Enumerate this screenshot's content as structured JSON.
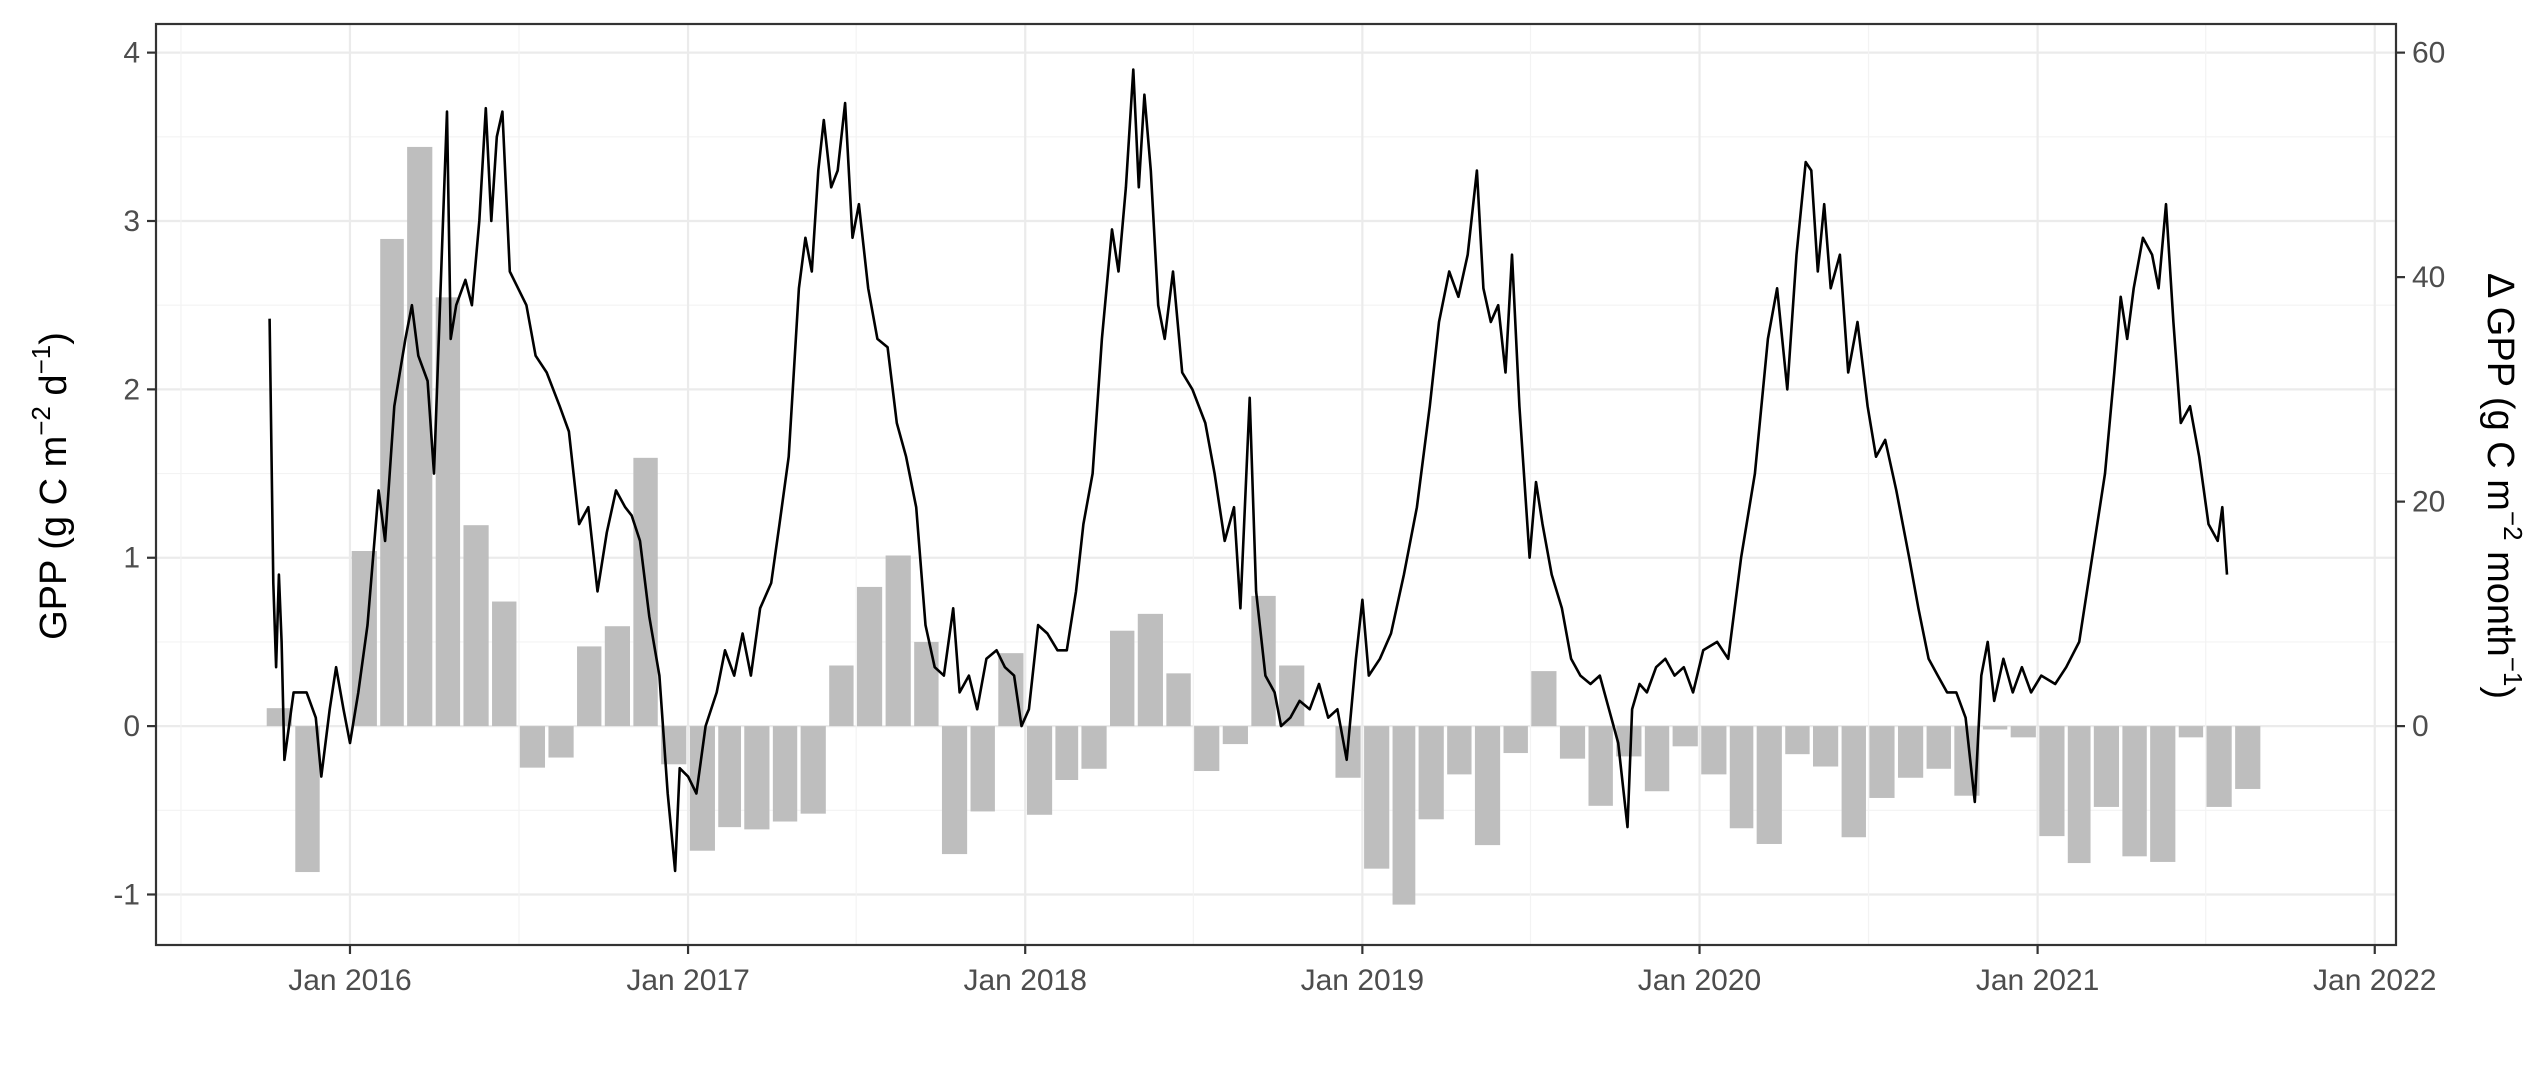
{
  "chart_data": {
    "type": "bar+line",
    "left_axis": {
      "title_parts": [
        "GPP (g C m",
        "−2",
        " d",
        "−1",
        ")"
      ],
      "range": [
        -1.3,
        4.17
      ],
      "ticks": [
        -1,
        0,
        1,
        2,
        3,
        4
      ],
      "tick_labels": [
        "-1",
        "0",
        "1",
        "2",
        "3",
        "4"
      ]
    },
    "right_axis": {
      "title_parts": [
        "Δ GPP (g C m",
        "−2",
        " month",
        "−1",
        ")"
      ],
      "ticks": [
        0,
        20,
        40,
        60
      ],
      "tick_labels": [
        "0",
        "20",
        "40",
        "60"
      ],
      "scale_factor": 15
    },
    "x_axis": {
      "range": [
        "2015-06-05",
        "2022-01-24"
      ],
      "ticks": [
        "2016-01-01",
        "2017-01-01",
        "2018-01-01",
        "2019-01-01",
        "2020-01-01",
        "2021-01-01",
        "2022-01-01"
      ],
      "tick_labels": [
        "Jan 2016",
        "Jan 2017",
        "Jan 2018",
        "Jan 2019",
        "Jan 2020",
        "Jan 2021",
        "Jan 2022"
      ]
    },
    "grid": true,
    "bars": {
      "name": "",
      "unit": "g C m-2 month-1",
      "color": "#bebebe",
      "months": [
        "2015-10",
        "2015-11",
        "2015-12",
        "2016-01",
        "2016-02",
        "2016-03",
        "2016-04",
        "2016-05",
        "2016-06",
        "2016-07",
        "2016-08",
        "2016-09",
        "2016-10",
        "2016-11",
        "2016-12",
        "2017-01",
        "2017-02",
        "2017-03",
        "2017-04",
        "2017-05",
        "2017-06",
        "2017-07",
        "2017-08",
        "2017-09",
        "2017-10",
        "2017-11",
        "2017-12",
        "2018-01",
        "2018-02",
        "2018-03",
        "2018-04",
        "2018-05",
        "2018-06",
        "2018-07",
        "2018-08",
        "2018-09",
        "2018-10",
        "2018-11",
        "2018-12",
        "2019-01",
        "2019-02",
        "2019-03",
        "2019-04",
        "2019-05",
        "2019-06",
        "2019-07",
        "2019-08",
        "2019-09",
        "2019-10",
        "2019-11",
        "2019-12",
        "2020-01",
        "2020-02",
        "2020-03",
        "2020-04",
        "2020-05",
        "2020-06",
        "2020-07",
        "2020-08",
        "2020-09",
        "2020-10",
        "2020-11",
        "2020-12",
        "2021-01",
        "2021-02",
        "2021-03",
        "2021-04",
        "2021-05",
        "2021-06",
        "2021-07",
        "2021-08",
        "2021-09"
      ],
      "values": [
        1.6,
        -13.0,
        0,
        15.6,
        43.4,
        51.6,
        38.2,
        17.9,
        11.1,
        -3.7,
        -2.8,
        7.1,
        8.9,
        23.9,
        -3.4,
        -11.1,
        -9.0,
        -9.2,
        -8.5,
        -7.8,
        5.4,
        12.4,
        15.2,
        7.5,
        -11.4,
        -7.6,
        6.5,
        -7.9,
        -4.8,
        -3.8,
        8.5,
        10.0,
        4.7,
        -4.0,
        -1.6,
        11.6,
        5.4,
        0,
        -4.6,
        -12.7,
        -15.9,
        -8.3,
        -4.3,
        -10.6,
        -2.4,
        4.9,
        -2.9,
        -7.1,
        -2.7,
        -5.8,
        -1.8,
        -4.3,
        -9.1,
        -10.5,
        -2.5,
        -3.6,
        -9.9,
        -6.4,
        -4.6,
        -3.8,
        -6.2,
        -0.3,
        -1.0,
        -9.8,
        -12.2,
        -7.2,
        -11.6,
        -12.1,
        -1.0,
        -7.2,
        -5.6,
        0
      ],
      "range_months": [
        "2015-10",
        "2021-09"
      ]
    },
    "line": {
      "name": "",
      "unit": "g C m-2 d-1",
      "color": "#000000",
      "points": [
        [
          "2015-10-06",
          2.42
        ],
        [
          "2015-10-10",
          0.85
        ],
        [
          "2015-10-13",
          0.35
        ],
        [
          "2015-10-16",
          0.9
        ],
        [
          "2015-10-19",
          0.5
        ],
        [
          "2015-10-22",
          -0.2
        ],
        [
          "2015-11-01",
          0.2
        ],
        [
          "2015-11-15",
          0.2
        ],
        [
          "2015-11-25",
          0.05
        ],
        [
          "2015-12-01",
          -0.3
        ],
        [
          "2015-12-10",
          0.1
        ],
        [
          "2015-12-17",
          0.35
        ],
        [
          "2015-12-25",
          0.1
        ],
        [
          "2016-01-01",
          -0.1
        ],
        [
          "2016-01-10",
          0.2
        ],
        [
          "2016-01-20",
          0.6
        ],
        [
          "2016-02-01",
          1.4
        ],
        [
          "2016-02-08",
          1.1
        ],
        [
          "2016-02-18",
          1.9
        ],
        [
          "2016-03-01",
          2.3
        ],
        [
          "2016-03-08",
          2.5
        ],
        [
          "2016-03-15",
          2.2
        ],
        [
          "2016-03-25",
          2.05
        ],
        [
          "2016-04-01",
          1.5
        ],
        [
          "2016-04-10",
          2.9
        ],
        [
          "2016-04-15",
          3.65
        ],
        [
          "2016-04-19",
          2.3
        ],
        [
          "2016-04-25",
          2.5
        ],
        [
          "2016-05-05",
          2.65
        ],
        [
          "2016-05-12",
          2.5
        ],
        [
          "2016-05-20",
          3.0
        ],
        [
          "2016-05-27",
          3.67
        ],
        [
          "2016-06-02",
          3.0
        ],
        [
          "2016-06-08",
          3.5
        ],
        [
          "2016-06-14",
          3.65
        ],
        [
          "2016-06-22",
          2.7
        ],
        [
          "2016-07-01",
          2.6
        ],
        [
          "2016-07-10",
          2.5
        ],
        [
          "2016-07-20",
          2.2
        ],
        [
          "2016-08-01",
          2.1
        ],
        [
          "2016-08-15",
          1.9
        ],
        [
          "2016-08-25",
          1.75
        ],
        [
          "2016-09-05",
          1.2
        ],
        [
          "2016-09-15",
          1.3
        ],
        [
          "2016-09-25",
          0.8
        ],
        [
          "2016-10-05",
          1.15
        ],
        [
          "2016-10-15",
          1.4
        ],
        [
          "2016-10-25",
          1.3
        ],
        [
          "2016-11-01",
          1.25
        ],
        [
          "2016-11-10",
          1.1
        ],
        [
          "2016-11-20",
          0.65
        ],
        [
          "2016-12-01",
          0.3
        ],
        [
          "2016-12-10",
          -0.4
        ],
        [
          "2016-12-18",
          -0.86
        ],
        [
          "2016-12-23",
          -0.25
        ],
        [
          "2017-01-01",
          -0.3
        ],
        [
          "2017-01-10",
          -0.4
        ],
        [
          "2017-01-20",
          0.0
        ],
        [
          "2017-02-01",
          0.2
        ],
        [
          "2017-02-10",
          0.45
        ],
        [
          "2017-02-20",
          0.3
        ],
        [
          "2017-03-01",
          0.55
        ],
        [
          "2017-03-10",
          0.3
        ],
        [
          "2017-03-20",
          0.7
        ],
        [
          "2017-04-01",
          0.85
        ],
        [
          "2017-04-10",
          1.2
        ],
        [
          "2017-04-20",
          1.6
        ],
        [
          "2017-05-01",
          2.6
        ],
        [
          "2017-05-08",
          2.9
        ],
        [
          "2017-05-15",
          2.7
        ],
        [
          "2017-05-22",
          3.3
        ],
        [
          "2017-05-28",
          3.6
        ],
        [
          "2017-06-05",
          3.2
        ],
        [
          "2017-06-12",
          3.3
        ],
        [
          "2017-06-20",
          3.7
        ],
        [
          "2017-06-28",
          2.9
        ],
        [
          "2017-07-05",
          3.1
        ],
        [
          "2017-07-15",
          2.6
        ],
        [
          "2017-07-25",
          2.3
        ],
        [
          "2017-08-05",
          2.25
        ],
        [
          "2017-08-15",
          1.8
        ],
        [
          "2017-08-25",
          1.6
        ],
        [
          "2017-09-05",
          1.3
        ],
        [
          "2017-09-15",
          0.6
        ],
        [
          "2017-09-25",
          0.35
        ],
        [
          "2017-10-05",
          0.3
        ],
        [
          "2017-10-15",
          0.7
        ],
        [
          "2017-10-22",
          0.2
        ],
        [
          "2017-11-01",
          0.3
        ],
        [
          "2017-11-10",
          0.1
        ],
        [
          "2017-11-20",
          0.4
        ],
        [
          "2017-12-01",
          0.45
        ],
        [
          "2017-12-10",
          0.35
        ],
        [
          "2017-12-20",
          0.3
        ],
        [
          "2017-12-28",
          0.0
        ],
        [
          "2018-01-05",
          0.1
        ],
        [
          "2018-01-15",
          0.6
        ],
        [
          "2018-01-25",
          0.55
        ],
        [
          "2018-02-05",
          0.45
        ],
        [
          "2018-02-15",
          0.45
        ],
        [
          "2018-02-25",
          0.8
        ],
        [
          "2018-03-05",
          1.2
        ],
        [
          "2018-03-15",
          1.5
        ],
        [
          "2018-03-25",
          2.3
        ],
        [
          "2018-04-05",
          2.95
        ],
        [
          "2018-04-12",
          2.7
        ],
        [
          "2018-04-20",
          3.2
        ],
        [
          "2018-04-28",
          3.9
        ],
        [
          "2018-05-04",
          3.2
        ],
        [
          "2018-05-10",
          3.75
        ],
        [
          "2018-05-17",
          3.3
        ],
        [
          "2018-05-25",
          2.5
        ],
        [
          "2018-06-01",
          2.3
        ],
        [
          "2018-06-10",
          2.7
        ],
        [
          "2018-06-20",
          2.1
        ],
        [
          "2018-07-01",
          2.0
        ],
        [
          "2018-07-15",
          1.8
        ],
        [
          "2018-07-25",
          1.5
        ],
        [
          "2018-08-05",
          1.1
        ],
        [
          "2018-08-15",
          1.3
        ],
        [
          "2018-08-22",
          0.7
        ],
        [
          "2018-09-01",
          1.95
        ],
        [
          "2018-09-08",
          0.8
        ],
        [
          "2018-09-18",
          0.3
        ],
        [
          "2018-09-28",
          0.2
        ],
        [
          "2018-10-05",
          0.0
        ],
        [
          "2018-10-15",
          0.05
        ],
        [
          "2018-10-25",
          0.15
        ],
        [
          "2018-11-05",
          0.1
        ],
        [
          "2018-11-15",
          0.25
        ],
        [
          "2018-11-25",
          0.05
        ],
        [
          "2018-12-05",
          0.1
        ],
        [
          "2018-12-15",
          -0.2
        ],
        [
          "2018-12-25",
          0.4
        ],
        [
          "2019-01-01",
          0.75
        ],
        [
          "2019-01-08",
          0.3
        ],
        [
          "2019-01-20",
          0.4
        ],
        [
          "2019-02-01",
          0.55
        ],
        [
          "2019-02-15",
          0.9
        ],
        [
          "2019-03-01",
          1.3
        ],
        [
          "2019-03-15",
          1.9
        ],
        [
          "2019-03-25",
          2.4
        ],
        [
          "2019-04-05",
          2.7
        ],
        [
          "2019-04-15",
          2.55
        ],
        [
          "2019-04-25",
          2.8
        ],
        [
          "2019-05-05",
          3.3
        ],
        [
          "2019-05-12",
          2.6
        ],
        [
          "2019-05-20",
          2.4
        ],
        [
          "2019-05-28",
          2.5
        ],
        [
          "2019-06-05",
          2.1
        ],
        [
          "2019-06-12",
          2.8
        ],
        [
          "2019-06-20",
          1.9
        ],
        [
          "2019-07-01",
          1.0
        ],
        [
          "2019-07-08",
          1.45
        ],
        [
          "2019-07-15",
          1.2
        ],
        [
          "2019-07-25",
          0.9
        ],
        [
          "2019-08-05",
          0.7
        ],
        [
          "2019-08-15",
          0.4
        ],
        [
          "2019-08-25",
          0.3
        ],
        [
          "2019-09-05",
          0.25
        ],
        [
          "2019-09-15",
          0.3
        ],
        [
          "2019-09-25",
          0.1
        ],
        [
          "2019-10-05",
          -0.1
        ],
        [
          "2019-10-15",
          -0.6
        ],
        [
          "2019-10-20",
          0.1
        ],
        [
          "2019-10-28",
          0.25
        ],
        [
          "2019-11-05",
          0.2
        ],
        [
          "2019-11-15",
          0.35
        ],
        [
          "2019-11-25",
          0.4
        ],
        [
          "2019-12-05",
          0.3
        ],
        [
          "2019-12-15",
          0.35
        ],
        [
          "2019-12-25",
          0.2
        ],
        [
          "2020-01-05",
          0.45
        ],
        [
          "2020-01-20",
          0.5
        ],
        [
          "2020-02-01",
          0.4
        ],
        [
          "2020-02-15",
          1.0
        ],
        [
          "2020-03-01",
          1.5
        ],
        [
          "2020-03-15",
          2.3
        ],
        [
          "2020-03-25",
          2.6
        ],
        [
          "2020-04-05",
          2.0
        ],
        [
          "2020-04-15",
          2.8
        ],
        [
          "2020-04-25",
          3.35
        ],
        [
          "2020-05-01",
          3.3
        ],
        [
          "2020-05-08",
          2.7
        ],
        [
          "2020-05-15",
          3.1
        ],
        [
          "2020-05-22",
          2.6
        ],
        [
          "2020-06-01",
          2.8
        ],
        [
          "2020-06-10",
          2.1
        ],
        [
          "2020-06-20",
          2.4
        ],
        [
          "2020-07-01",
          1.9
        ],
        [
          "2020-07-10",
          1.6
        ],
        [
          "2020-07-20",
          1.7
        ],
        [
          "2020-08-01",
          1.4
        ],
        [
          "2020-08-15",
          1.0
        ],
        [
          "2020-08-25",
          0.7
        ],
        [
          "2020-09-05",
          0.4
        ],
        [
          "2020-09-15",
          0.3
        ],
        [
          "2020-09-25",
          0.2
        ],
        [
          "2020-10-05",
          0.2
        ],
        [
          "2020-10-15",
          0.05
        ],
        [
          "2020-10-25",
          -0.45
        ],
        [
          "2020-11-01",
          0.3
        ],
        [
          "2020-11-08",
          0.5
        ],
        [
          "2020-11-15",
          0.15
        ],
        [
          "2020-11-25",
          0.4
        ],
        [
          "2020-12-05",
          0.2
        ],
        [
          "2020-12-15",
          0.35
        ],
        [
          "2020-12-25",
          0.2
        ],
        [
          "2021-01-05",
          0.3
        ],
        [
          "2021-01-20",
          0.25
        ],
        [
          "2021-02-01",
          0.35
        ],
        [
          "2021-02-15",
          0.5
        ],
        [
          "2021-03-01",
          1.0
        ],
        [
          "2021-03-15",
          1.5
        ],
        [
          "2021-03-25",
          2.1
        ],
        [
          "2021-04-01",
          2.55
        ],
        [
          "2021-04-08",
          2.3
        ],
        [
          "2021-04-15",
          2.6
        ],
        [
          "2021-04-25",
          2.9
        ],
        [
          "2021-05-05",
          2.8
        ],
        [
          "2021-05-12",
          2.6
        ],
        [
          "2021-05-20",
          3.1
        ],
        [
          "2021-05-28",
          2.4
        ],
        [
          "2021-06-05",
          1.8
        ],
        [
          "2021-06-15",
          1.9
        ],
        [
          "2021-06-25",
          1.6
        ],
        [
          "2021-07-05",
          1.2
        ],
        [
          "2021-07-15",
          1.1
        ],
        [
          "2021-07-20",
          1.3
        ],
        [
          "2021-07-25",
          0.9
        ]
      ]
    }
  }
}
